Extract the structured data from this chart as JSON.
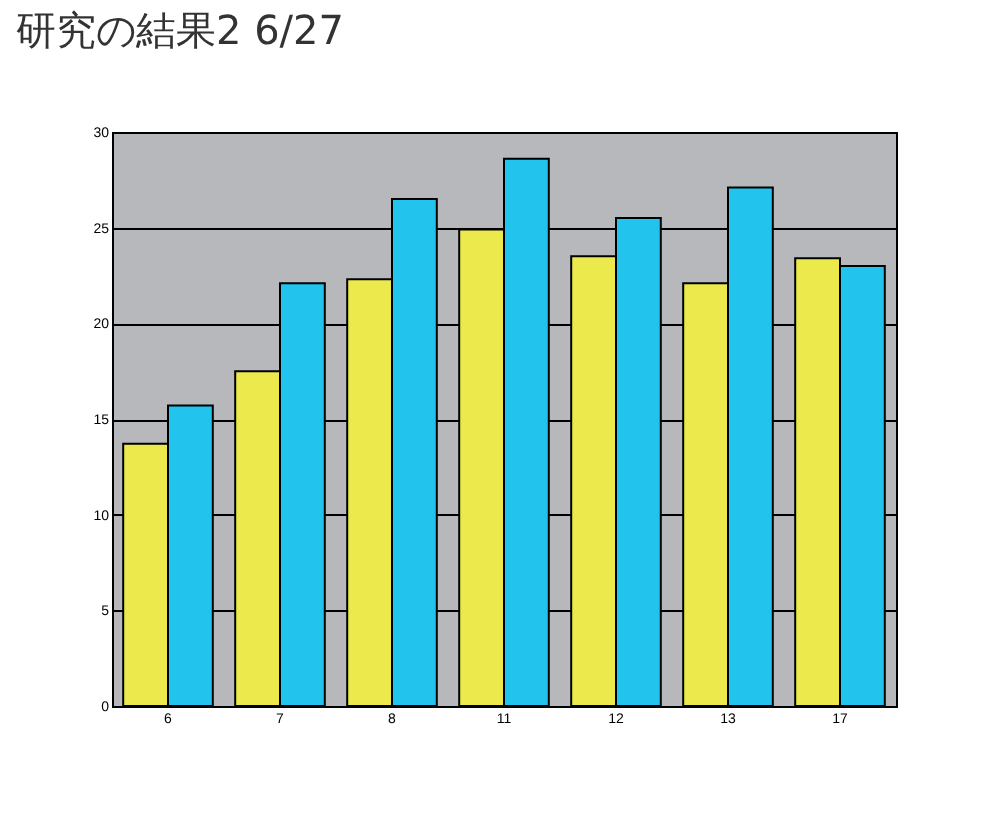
{
  "chart_data": {
    "type": "bar",
    "title": "研究の結果2  6/27",
    "categories": [
      "6",
      "7",
      "8",
      "11",
      "12",
      "13",
      "17"
    ],
    "series": [
      {
        "color": "#ece94c",
        "values": [
          13.7,
          17.5,
          22.3,
          24.9,
          23.5,
          22.1,
          23.4
        ]
      },
      {
        "color": "#22c3ec",
        "values": [
          15.7,
          22.1,
          26.5,
          28.6,
          25.5,
          27.1,
          23.0
        ]
      }
    ],
    "ylim": [
      0,
      30
    ],
    "yticks": [
      0,
      5,
      10,
      15,
      20,
      25,
      30
    ],
    "grid": "y"
  }
}
